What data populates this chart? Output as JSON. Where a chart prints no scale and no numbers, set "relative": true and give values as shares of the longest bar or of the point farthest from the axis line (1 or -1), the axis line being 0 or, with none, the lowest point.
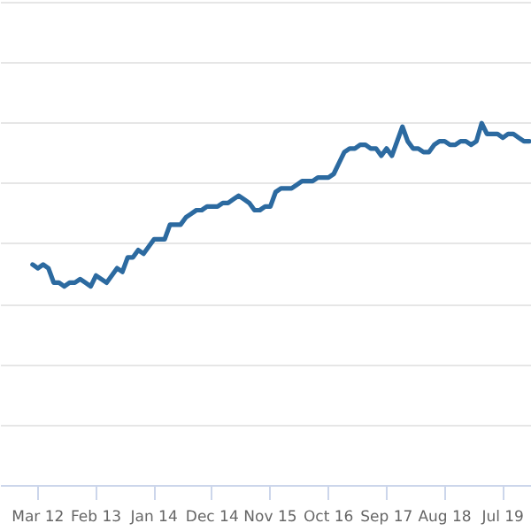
{
  "chart_data": {
    "type": "line",
    "relative": true,
    "grid": "y",
    "categories": [
      null,
      "Mar 12",
      null,
      null,
      null,
      null,
      null,
      null,
      null,
      null,
      null,
      null,
      "Feb 13",
      null,
      null,
      null,
      null,
      null,
      null,
      null,
      null,
      null,
      null,
      "Jan 14",
      null,
      null,
      null,
      null,
      null,
      null,
      null,
      null,
      null,
      null,
      "Dec 14",
      null,
      null,
      null,
      null,
      null,
      null,
      null,
      null,
      null,
      null,
      "Nov 15",
      null,
      null,
      null,
      null,
      null,
      null,
      null,
      null,
      null,
      null,
      "Oct 16",
      null,
      null,
      null,
      null,
      null,
      null,
      null,
      null,
      null,
      null,
      "Sep 17",
      null,
      null,
      null,
      null,
      null,
      null,
      null,
      null,
      null,
      null,
      "Aug 18",
      null,
      null,
      null,
      null,
      null,
      null,
      null,
      null,
      null,
      null,
      "Jul 19",
      null,
      null,
      null,
      null,
      null
    ],
    "series": [
      {
        "color": "#2c6aa0",
        "values": [
          0.61,
          0.6,
          0.61,
          0.6,
          0.56,
          0.56,
          0.55,
          0.56,
          0.56,
          0.57,
          0.56,
          0.55,
          0.58,
          0.57,
          0.56,
          0.58,
          0.6,
          0.59,
          0.63,
          0.63,
          0.65,
          0.64,
          0.66,
          0.68,
          0.68,
          0.68,
          0.72,
          0.72,
          0.72,
          0.74,
          0.75,
          0.76,
          0.76,
          0.77,
          0.77,
          0.77,
          0.78,
          0.78,
          0.79,
          0.8,
          0.79,
          0.78,
          0.76,
          0.76,
          0.77,
          0.77,
          0.81,
          0.82,
          0.82,
          0.82,
          0.83,
          0.84,
          0.84,
          0.84,
          0.85,
          0.85,
          0.85,
          0.86,
          0.89,
          0.92,
          0.93,
          0.93,
          0.94,
          0.94,
          0.93,
          0.93,
          0.91,
          0.93,
          0.91,
          0.95,
          0.99,
          0.95,
          0.93,
          0.93,
          0.92,
          0.92,
          0.94,
          0.95,
          0.95,
          0.94,
          0.94,
          0.95,
          0.95,
          0.94,
          0.95,
          1.0,
          0.97,
          0.97,
          0.97,
          0.96,
          0.97,
          0.97,
          0.96,
          0.95,
          0.95
        ]
      }
    ]
  }
}
